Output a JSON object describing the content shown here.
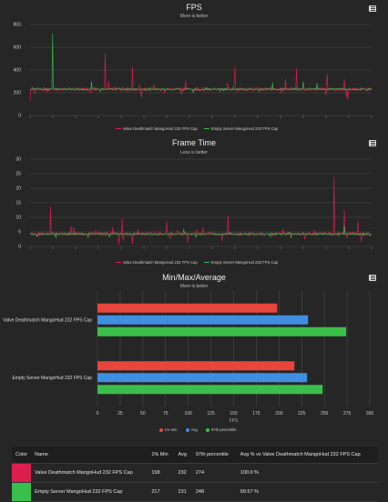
{
  "chart_data": [
    {
      "type": "line",
      "title": "FPS",
      "subtitle": "More is better",
      "ylim": [
        0,
        800
      ],
      "yticks": [
        0,
        200,
        400,
        600,
        800
      ],
      "grid": true,
      "legend_position": "bottom",
      "series": [
        {
          "name": "Valve Deathmatch MangoHud 232 FPS Cap",
          "color": "#dc1f4e",
          "baseline": 232,
          "spikes": [
            [
              -0.02,
              130
            ],
            [
              0.22,
              550
            ],
            [
              0.3,
              430
            ],
            [
              0.49,
              250
            ],
            [
              0.6,
              430
            ],
            [
              0.78,
              415
            ],
            [
              0.87,
              370
            ],
            [
              0.92,
              320
            ]
          ]
        },
        {
          "name": "Empty Server MangoHud 232 FPS Cap",
          "color": "#37c14c",
          "baseline": 231,
          "spikes": [
            [
              0.065,
              720
            ],
            [
              0.18,
              300
            ],
            [
              0.71,
              290
            ],
            [
              0.8,
              300
            ],
            [
              0.84,
              285
            ]
          ]
        }
      ]
    },
    {
      "type": "line",
      "title": "Frame Time",
      "subtitle": "Less is better",
      "ylim": [
        0,
        30
      ],
      "yticks": [
        0,
        5,
        10,
        15,
        20,
        25,
        30
      ],
      "grid": true,
      "legend_position": "bottom",
      "series": [
        {
          "name": "Valve Deathmatch MangoHud 232 FPS Cap",
          "color": "#dc1f4e",
          "baseline": 4.3,
          "spikes": [
            [
              0.06,
              13.8
            ],
            [
              0.27,
              9.5
            ],
            [
              0.4,
              8.5
            ],
            [
              0.58,
              10.5
            ],
            [
              0.74,
              6.0
            ],
            [
              0.89,
              24.0
            ],
            [
              0.92,
              12.5
            ],
            [
              0.96,
              8.8
            ]
          ]
        },
        {
          "name": "Empty Server MangoHud 232 FPS Cap",
          "color": "#37c14c",
          "baseline": 4.3,
          "spikes": [
            [
              0.17,
              3.0
            ],
            [
              0.45,
              6.0
            ],
            [
              0.92,
              7.0
            ]
          ]
        }
      ]
    },
    {
      "type": "bar",
      "orientation": "horizontal",
      "title": "Min/Max/Average",
      "subtitle": "More is better",
      "xlabel": "FPS",
      "xlim": [
        0,
        300
      ],
      "xticks": [
        0,
        25,
        50,
        75,
        100,
        125,
        150,
        175,
        200,
        225,
        250,
        275,
        300
      ],
      "grid": true,
      "legend_position": "bottom",
      "categories": [
        "Valve Deathmatch MangoHud 232 FPS Cap",
        "Empty Server MangoHud 232 FPS Cap"
      ],
      "series": [
        {
          "name": "1% min",
          "color": "#e8453c",
          "values": [
            198,
            217
          ]
        },
        {
          "name": "Avg",
          "color": "#3f8ee0",
          "values": [
            232,
            231
          ]
        },
        {
          "name": "97th percentile",
          "color": "#3cbf4a",
          "values": [
            274,
            248
          ]
        }
      ]
    }
  ],
  "table": {
    "headers": [
      "Color",
      "Name",
      "1% Min",
      "Avg",
      "97th percentile",
      "Avg % vs Valve Deathmatch MangoHud 232 FPS Cap"
    ],
    "rows": [
      {
        "color": "#dc1f4e",
        "name": "Valve Deathmatch MangoHud 232 FPS Cap",
        "min": "198",
        "avg": "232",
        "p97": "274",
        "pct": "100.0 %"
      },
      {
        "color": "#37c14c",
        "name": "Empty Server MangoHud 232 FPS Cap",
        "min": "217",
        "avg": "231",
        "p97": "248",
        "pct": "99.57 %"
      }
    ]
  }
}
